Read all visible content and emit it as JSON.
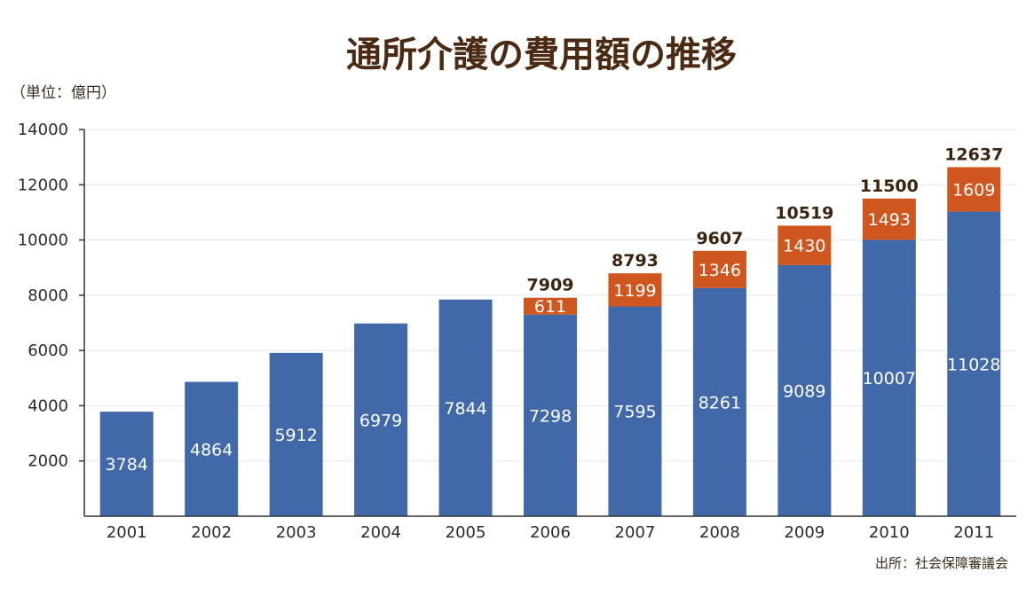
{
  "chart_data": {
    "type": "bar",
    "stacked": true,
    "title": "通所介護の費用額の推移",
    "unit_label": "（単位：億円）",
    "source": "出所：社会保障審議会",
    "categories": [
      "2001",
      "2002",
      "2003",
      "2004",
      "2005",
      "2006",
      "2007",
      "2008",
      "2009",
      "2010",
      "2011"
    ],
    "series": [
      {
        "values": [
          3784,
          4864,
          5912,
          6979,
          7844,
          7298,
          7595,
          8261,
          9089,
          10007,
          11028
        ],
        "color": "#4169aa"
      },
      {
        "values": [
          null,
          null,
          null,
          null,
          null,
          611,
          1199,
          1346,
          1430,
          1493,
          1609
        ],
        "color": "#d0561f"
      }
    ],
    "totals": [
      null,
      null,
      null,
      null,
      null,
      "7909",
      "8793",
      "9607",
      "10519",
      "11500",
      "12637"
    ],
    "yticks": [
      "14000",
      "12000",
      "10000",
      "8000",
      "6000",
      "4000",
      "2000"
    ],
    "ylim": [
      0,
      14000
    ],
    "grid": true,
    "legend": "none"
  }
}
